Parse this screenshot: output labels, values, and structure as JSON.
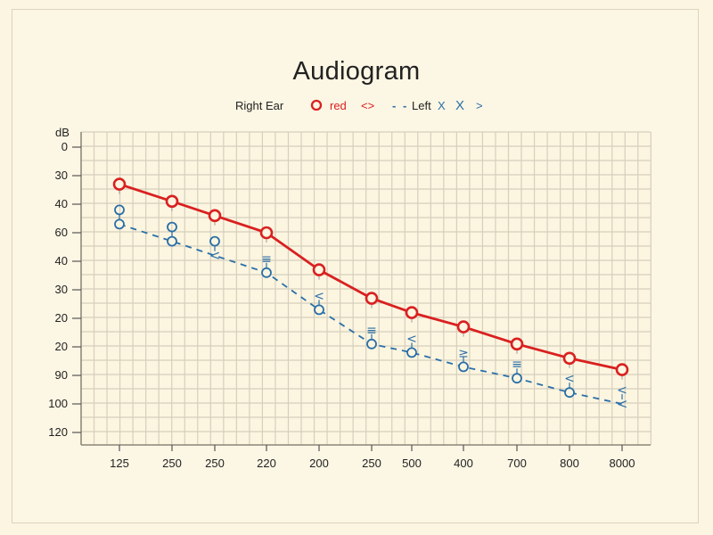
{
  "chart_data": {
    "type": "line",
    "title": "Audiogram",
    "ylabel": "dB",
    "xlabel": "",
    "legend": {
      "position": "top-center",
      "entries": [
        {
          "label": "Right Ear",
          "color": "#222222"
        },
        {
          "label": "red",
          "marker": "circle",
          "color": "#d92020"
        },
        {
          "label": "<>",
          "color": "#d92020"
        },
        {
          "label": "Left",
          "line": "dashed",
          "color": "#2a6fa8"
        },
        {
          "label": "X X >",
          "color": "#2a6fa8"
        }
      ]
    },
    "y_tick_labels": [
      "0",
      "30",
      "40",
      "60",
      "40",
      "30",
      "20",
      "20",
      "90",
      "100",
      "120"
    ],
    "x_tick_labels": [
      "125",
      "250",
      "250",
      "220",
      "200",
      "250",
      "500",
      "400",
      "700",
      "800",
      "8000"
    ],
    "categories": [
      "125",
      "250",
      "250",
      "220",
      "200",
      "250",
      "500",
      "400",
      "700",
      "800",
      "8000"
    ],
    "grid": true,
    "y_axis_inverted": true,
    "note": "values are positional readings in tick-index units (0 = top tick '0', 10 = bottom tick '120'); tick labels are non-monotonic",
    "series": [
      {
        "name": "Right Ear (red)",
        "color": "#d92020",
        "line": "solid",
        "marker": "circle",
        "values": [
          1.3,
          1.9,
          2.4,
          3.0,
          4.3,
          5.3,
          5.8,
          6.3,
          6.9,
          7.4,
          7.8
        ]
      },
      {
        "name": "Left",
        "color": "#2a6fa8",
        "line": "dashed",
        "marker": "circle",
        "values": [
          2.7,
          3.3,
          3.8,
          4.4,
          5.7,
          6.9,
          7.2,
          7.7,
          8.1,
          8.6,
          9.0
        ]
      }
    ],
    "annotations": {
      "left_extra_markers": [
        "O",
        "O",
        "O",
        "≡",
        "<",
        "≡",
        "<",
        "≥",
        "≡",
        "<",
        "<"
      ],
      "left_point_markers": [
        "O",
        "O",
        "<",
        "O",
        "O",
        "O",
        "O",
        "O",
        "O",
        "O",
        "<"
      ]
    }
  },
  "labels": {
    "title": "Audiogram",
    "db": "dB",
    "legend_right_ear": "Right Ear",
    "legend_red": "red",
    "legend_red_sym": "<>",
    "legend_dash": "- -",
    "legend_left": "Left",
    "legend_left_sym1": "X",
    "legend_left_sym2": "X",
    "legend_left_sym3": ">"
  },
  "colors": {
    "background": "#fbf5e2",
    "grid": "#d6cfbd",
    "right": "#d92020",
    "left": "#2a6fa8"
  }
}
